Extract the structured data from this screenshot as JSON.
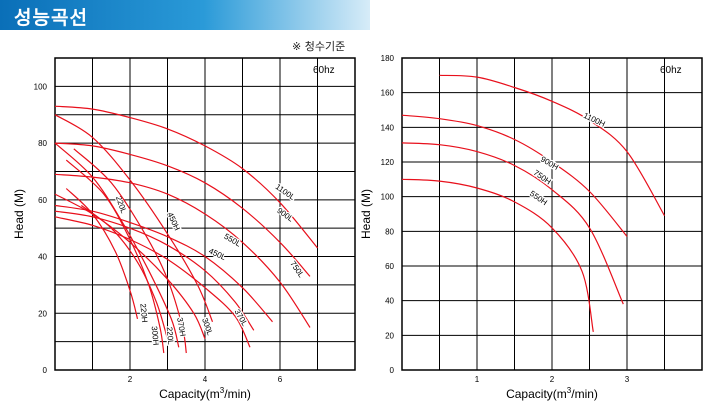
{
  "header": {
    "title": "성능곡선",
    "note": "※ 청수기준"
  },
  "chart_data": [
    {
      "type": "line",
      "badge": "60hz",
      "xlabel": "Capacity(m3/min)",
      "ylabel": "Head (M)",
      "xlim": [
        0,
        8
      ],
      "ylim": [
        0,
        110
      ],
      "xticks": [
        "2",
        "4",
        "6"
      ],
      "yticks": [
        "0",
        "20",
        "40",
        "60",
        "80",
        "100"
      ],
      "grid": true,
      "series": [
        {
          "name": "1100L",
          "label_at": [
            6.1,
            62
          ],
          "label_angle": 35,
          "points": [
            [
              0,
              93
            ],
            [
              1,
              92
            ],
            [
              2,
              89
            ],
            [
              3,
              85
            ],
            [
              4,
              79
            ],
            [
              5,
              71
            ],
            [
              6,
              59
            ],
            [
              7,
              43
            ]
          ]
        },
        {
          "name": "900L",
          "label_at": [
            6.1,
            54
          ],
          "label_angle": 35,
          "points": [
            [
              0,
              80
            ],
            [
              1,
              79
            ],
            [
              2,
              76
            ],
            [
              3,
              72
            ],
            [
              4,
              66
            ],
            [
              5,
              57
            ],
            [
              6,
              45
            ],
            [
              6.8,
              33
            ]
          ]
        },
        {
          "name": "750L",
          "label_at": [
            6.4,
            35
          ],
          "label_angle": 55,
          "points": [
            [
              0,
              69
            ],
            [
              1,
              68
            ],
            [
              2,
              66
            ],
            [
              3,
              62
            ],
            [
              4,
              55
            ],
            [
              5,
              45
            ],
            [
              6,
              31
            ],
            [
              6.8,
              15
            ]
          ]
        },
        {
          "name": "550L",
          "label_at": [
            4.7,
            45
          ],
          "label_angle": 30,
          "points": [
            [
              0,
              58
            ],
            [
              1,
              56
            ],
            [
              2,
              52
            ],
            [
              3,
              47
            ],
            [
              4,
              40
            ],
            [
              5,
              29
            ],
            [
              5.8,
              17
            ]
          ]
        },
        {
          "name": "450L",
          "label_at": [
            4.3,
            40
          ],
          "label_angle": 25,
          "points": [
            [
              0,
              56
            ],
            [
              1,
              54
            ],
            [
              2,
              50
            ],
            [
              3,
              44
            ],
            [
              4,
              35
            ],
            [
              4.8,
              24
            ],
            [
              5.3,
              14
            ]
          ]
        },
        {
          "name": "370L",
          "label_at": [
            4.9,
            18
          ],
          "label_angle": 60,
          "points": [
            [
              0,
              54
            ],
            [
              1,
              51
            ],
            [
              2,
              46
            ],
            [
              3,
              39
            ],
            [
              4,
              29
            ],
            [
              4.8,
              19
            ],
            [
              5.2,
              8
            ]
          ]
        },
        {
          "name": "300L",
          "label_at": [
            4.0,
            15
          ],
          "label_angle": 70,
          "points": [
            [
              0,
              62
            ],
            [
              1,
              55
            ],
            [
              2,
              45
            ],
            [
              3,
              32
            ],
            [
              3.7,
              20
            ],
            [
              4.0,
              11
            ]
          ]
        },
        {
          "name": "450H",
          "label_at": [
            3.1,
            52
          ],
          "label_angle": 65,
          "points": [
            [
              0,
              90
            ],
            [
              1,
              82
            ],
            [
              2,
              67
            ],
            [
              3,
              48
            ],
            [
              3.8,
              30
            ],
            [
              4.2,
              17
            ]
          ]
        },
        {
          "name": "220L",
          "label_at": [
            1.7,
            58
          ],
          "label_angle": 70,
          "points": [
            [
              0,
              80
            ],
            [
              1,
              68
            ],
            [
              1.8,
              52
            ],
            [
              2.5,
              35
            ],
            [
              3.1,
              18
            ],
            [
              3.3,
              8
            ]
          ]
        },
        {
          "name": "370H",
          "label_at": [
            3.3,
            15
          ],
          "label_angle": 80,
          "points": [
            [
              0.5,
              78
            ],
            [
              1.5,
              66
            ],
            [
              2.4,
              48
            ],
            [
              3.0,
              32
            ],
            [
              3.4,
              15
            ],
            [
              3.5,
              6
            ]
          ]
        },
        {
          "name": "300H",
          "label_at": [
            2.6,
            12
          ],
          "label_angle": 85,
          "points": [
            [
              0.3,
              74
            ],
            [
              1.3,
              62
            ],
            [
              2.0,
              46
            ],
            [
              2.5,
              30
            ],
            [
              2.8,
              15
            ],
            [
              2.9,
              6
            ]
          ]
        },
        {
          "name": "220L",
          "label_at": [
            3.0,
            12
          ],
          "label_angle": 85,
          "points": [
            [
              0.7,
              58
            ],
            [
              1.5,
              50
            ],
            [
              2.2,
              38
            ],
            [
              2.7,
              24
            ],
            [
              3.0,
              11
            ]
          ]
        },
        {
          "name": "220H",
          "label_at": [
            2.3,
            20
          ],
          "label_angle": 85,
          "points": [
            [
              0.3,
              64
            ],
            [
              1.0,
              55
            ],
            [
              1.6,
              42
            ],
            [
              2.0,
              28
            ],
            [
              2.2,
              18
            ]
          ]
        }
      ]
    },
    {
      "type": "line",
      "badge": "60hz",
      "xlabel": "Capacity(m3/min)",
      "ylabel": "Head (M)",
      "xlim": [
        0,
        4
      ],
      "ylim": [
        0,
        180
      ],
      "xticks": [
        "1",
        "2",
        "3"
      ],
      "yticks": [
        "0",
        "20",
        "40",
        "60",
        "80",
        "100",
        "120",
        "140",
        "160",
        "180"
      ],
      "grid": true,
      "series": [
        {
          "name": "1100H",
          "label_at": [
            2.55,
            143
          ],
          "label_angle": 25,
          "points": [
            [
              0.5,
              170
            ],
            [
              1,
              169
            ],
            [
              1.5,
              163
            ],
            [
              2,
              155
            ],
            [
              2.5,
              144
            ],
            [
              3,
              126
            ],
            [
              3.5,
              89
            ]
          ]
        },
        {
          "name": "900H",
          "label_at": [
            1.95,
            118
          ],
          "label_angle": 30,
          "points": [
            [
              0,
              147
            ],
            [
              0.5,
              145
            ],
            [
              1,
              141
            ],
            [
              1.5,
              133
            ],
            [
              2,
              120
            ],
            [
              2.5,
              103
            ],
            [
              3,
              77
            ]
          ]
        },
        {
          "name": "750H",
          "label_at": [
            1.85,
            110
          ],
          "label_angle": 35,
          "points": [
            [
              0,
              131
            ],
            [
              0.5,
              130
            ],
            [
              1,
              126
            ],
            [
              1.5,
              118
            ],
            [
              2,
              104
            ],
            [
              2.5,
              82
            ],
            [
              2.95,
              38
            ]
          ]
        },
        {
          "name": "550H",
          "label_at": [
            1.8,
            98
          ],
          "label_angle": 35,
          "points": [
            [
              0,
              110
            ],
            [
              0.5,
              109
            ],
            [
              1,
              105
            ],
            [
              1.5,
              97
            ],
            [
              2,
              82
            ],
            [
              2.4,
              57
            ],
            [
              2.55,
              22
            ]
          ]
        }
      ]
    }
  ]
}
